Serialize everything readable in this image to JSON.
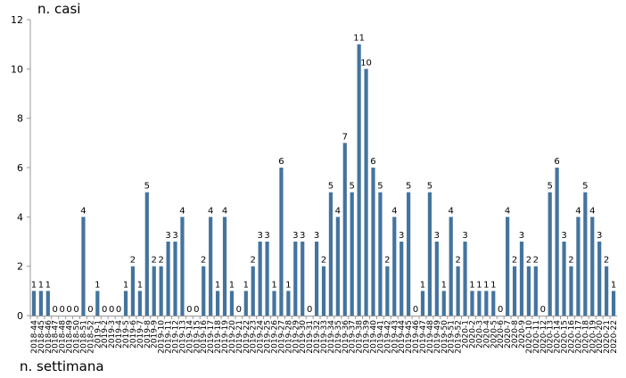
{
  "chart_data": {
    "type": "bar",
    "title": "",
    "xlabel": "n. settimana",
    "ylabel": "n. casi",
    "ylim": [
      0,
      12
    ],
    "yticks": [
      0,
      2,
      4,
      6,
      8,
      10,
      12
    ],
    "grid": false,
    "legend": "none",
    "bar_color": "#44749e",
    "data_labels": true,
    "categories": [
      "2018-44",
      "2018-45",
      "2018-46",
      "2018-47",
      "2018-48",
      "2018-49",
      "2018-50",
      "2018-51",
      "2018-52",
      "2019-1",
      "2019-2",
      "2019-3",
      "2019-4",
      "2019-5",
      "2019-6",
      "2019-7",
      "2019-8",
      "2019-9",
      "2019-10",
      "2019-11",
      "2019-12",
      "2019-13",
      "2019-14",
      "2019-15",
      "2019-16",
      "2019-17",
      "2019-18",
      "2019-19",
      "2019-20",
      "2019-21",
      "2019-22",
      "2019-23",
      "2019-24",
      "2019-25",
      "2019-26",
      "2019-27",
      "2019-28",
      "2019-29",
      "2019-30",
      "2019-31",
      "2019-32",
      "2019-33",
      "2019-34",
      "2019-35",
      "2019-36",
      "2019-37",
      "2019-38",
      "2019-39",
      "2019-40",
      "2019-41",
      "2019-42",
      "2019-43",
      "2019-44",
      "2019-45",
      "2019-46",
      "2019-47",
      "2019-48",
      "2019-49",
      "2019-50",
      "2019-51",
      "2019-52",
      "2020-1",
      "2020-2",
      "2020-3",
      "2020-4",
      "2020-5",
      "2020-6",
      "2020-7",
      "2020-8",
      "2020-9",
      "2020-10",
      "2020-11",
      "2020-12",
      "2020-13",
      "2020-14",
      "2020-15",
      "2020-16",
      "2020-17",
      "2020-18",
      "2020-19",
      "2020-20",
      "2020-21",
      "2020-22"
    ],
    "values": [
      1,
      1,
      1,
      0,
      0,
      0,
      0,
      4,
      0,
      1,
      0,
      0,
      0,
      1,
      2,
      1,
      5,
      2,
      2,
      3,
      3,
      4,
      0,
      0,
      2,
      4,
      1,
      4,
      1,
      0,
      1,
      2,
      3,
      3,
      1,
      6,
      1,
      3,
      3,
      0,
      3,
      2,
      5,
      4,
      7,
      5,
      11,
      10,
      6,
      5,
      2,
      4,
      3,
      5,
      0,
      1,
      5,
      3,
      1,
      4,
      2,
      3,
      1,
      1,
      1,
      1,
      0,
      4,
      2,
      3,
      2,
      2,
      0,
      5,
      6,
      3,
      2,
      4,
      5,
      4,
      3,
      2,
      1
    ]
  }
}
